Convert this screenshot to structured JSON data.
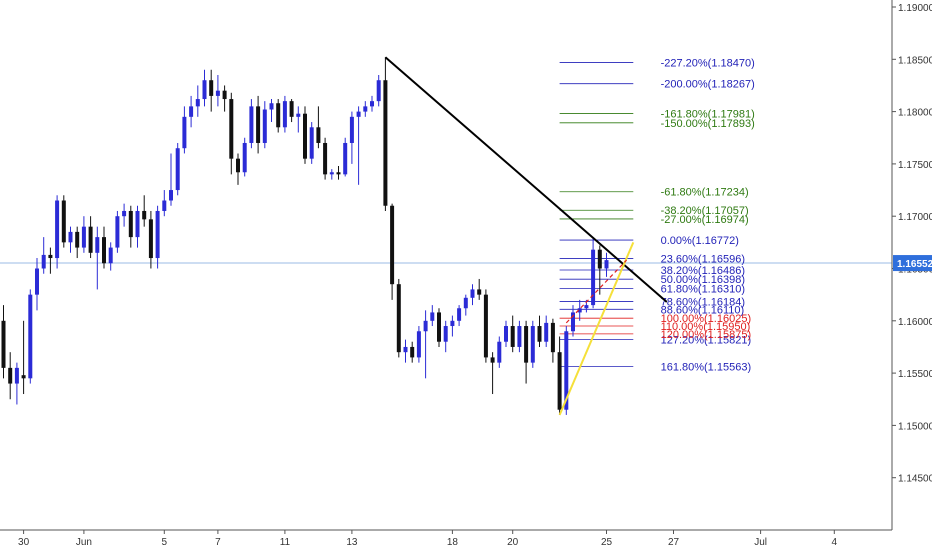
{
  "chart_data": {
    "type": "candlestick",
    "colors": {
      "bull": "#2b2bd6",
      "bear": "#111111",
      "last_price_bg": "#2f6fdc",
      "last_price_line": "#9bbbe6",
      "fib_blue": "#2323b8",
      "fib_green": "#2f7a12",
      "fib_red": "#e01e1e",
      "trendline": "#000000",
      "support_line": "#f5e03a",
      "projection": "#e02020",
      "axis_text": "#333333"
    },
    "ylim": [
      1.14,
      1.19
    ],
    "y_ticks": [
      {
        "value": 1.145,
        "label": "1.14500"
      },
      {
        "value": 1.15,
        "label": "1.15000"
      },
      {
        "value": 1.155,
        "label": "1.15500"
      },
      {
        "value": 1.16,
        "label": "1.16000"
      },
      {
        "value": 1.165,
        "label": "1.16500"
      },
      {
        "value": 1.17,
        "label": "1.17000"
      },
      {
        "value": 1.175,
        "label": "1.17500"
      },
      {
        "value": 1.18,
        "label": "1.18000"
      },
      {
        "value": 1.185,
        "label": "1.18500"
      },
      {
        "value": 1.19,
        "label": "1.19000"
      }
    ],
    "x_ticks": [
      {
        "label": "30",
        "x": 3
      },
      {
        "label": "Jun",
        "x": 12
      },
      {
        "label": "5",
        "x": 24
      },
      {
        "label": "7",
        "x": 32
      },
      {
        "label": "11",
        "x": 42
      },
      {
        "label": "13",
        "x": 52
      },
      {
        "label": "18",
        "x": 67
      },
      {
        "label": "20",
        "x": 76
      },
      {
        "label": "25",
        "x": 90
      },
      {
        "label": "27",
        "x": 100
      },
      {
        "label": "Jul",
        "x": 113
      },
      {
        "label": "4",
        "x": 124
      }
    ],
    "last_price": {
      "value": 1.16552,
      "label": "1.16552"
    },
    "candles": [
      {
        "x": 0,
        "o": 1.16,
        "h": 1.1615,
        "l": 1.1545,
        "c": 1.1555
      },
      {
        "x": 1,
        "o": 1.1555,
        "h": 1.157,
        "l": 1.1525,
        "c": 1.154
      },
      {
        "x": 2,
        "o": 1.154,
        "h": 1.156,
        "l": 1.152,
        "c": 1.1555
      },
      {
        "x": 3,
        "o": 1.1548,
        "h": 1.16,
        "l": 1.153,
        "c": 1.1545
      },
      {
        "x": 4,
        "o": 1.1545,
        "h": 1.163,
        "l": 1.154,
        "c": 1.1625
      },
      {
        "x": 5,
        "o": 1.1625,
        "h": 1.166,
        "l": 1.161,
        "c": 1.165
      },
      {
        "x": 6,
        "o": 1.165,
        "h": 1.168,
        "l": 1.1645,
        "c": 1.1663
      },
      {
        "x": 7,
        "o": 1.1663,
        "h": 1.167,
        "l": 1.1645,
        "c": 1.166
      },
      {
        "x": 8,
        "o": 1.166,
        "h": 1.172,
        "l": 1.165,
        "c": 1.1715
      },
      {
        "x": 9,
        "o": 1.1715,
        "h": 1.172,
        "l": 1.167,
        "c": 1.1675
      },
      {
        "x": 10,
        "o": 1.1675,
        "h": 1.169,
        "l": 1.1665,
        "c": 1.1685
      },
      {
        "x": 11,
        "o": 1.1685,
        "h": 1.169,
        "l": 1.166,
        "c": 1.167
      },
      {
        "x": 12,
        "o": 1.167,
        "h": 1.17,
        "l": 1.1665,
        "c": 1.169
      },
      {
        "x": 13,
        "o": 1.169,
        "h": 1.17,
        "l": 1.166,
        "c": 1.1665
      },
      {
        "x": 14,
        "o": 1.1665,
        "h": 1.169,
        "l": 1.163,
        "c": 1.168
      },
      {
        "x": 15,
        "o": 1.168,
        "h": 1.169,
        "l": 1.165,
        "c": 1.1655
      },
      {
        "x": 16,
        "o": 1.1655,
        "h": 1.1675,
        "l": 1.1648,
        "c": 1.167
      },
      {
        "x": 17,
        "o": 1.167,
        "h": 1.1705,
        "l": 1.1665,
        "c": 1.17
      },
      {
        "x": 18,
        "o": 1.17,
        "h": 1.1712,
        "l": 1.169,
        "c": 1.1705
      },
      {
        "x": 19,
        "o": 1.1705,
        "h": 1.171,
        "l": 1.167,
        "c": 1.168
      },
      {
        "x": 20,
        "o": 1.168,
        "h": 1.171,
        "l": 1.167,
        "c": 1.1705
      },
      {
        "x": 21,
        "o": 1.1705,
        "h": 1.172,
        "l": 1.169,
        "c": 1.1697
      },
      {
        "x": 22,
        "o": 1.1697,
        "h": 1.1705,
        "l": 1.165,
        "c": 1.166
      },
      {
        "x": 23,
        "o": 1.166,
        "h": 1.171,
        "l": 1.165,
        "c": 1.1705
      },
      {
        "x": 24,
        "o": 1.1705,
        "h": 1.1725,
        "l": 1.17,
        "c": 1.1715
      },
      {
        "x": 25,
        "o": 1.1715,
        "h": 1.176,
        "l": 1.171,
        "c": 1.1725
      },
      {
        "x": 26,
        "o": 1.1725,
        "h": 1.177,
        "l": 1.172,
        "c": 1.1765
      },
      {
        "x": 27,
        "o": 1.1765,
        "h": 1.1805,
        "l": 1.176,
        "c": 1.1795
      },
      {
        "x": 28,
        "o": 1.1795,
        "h": 1.1815,
        "l": 1.1785,
        "c": 1.1805
      },
      {
        "x": 29,
        "o": 1.1805,
        "h": 1.1825,
        "l": 1.1795,
        "c": 1.1812
      },
      {
        "x": 30,
        "o": 1.1812,
        "h": 1.184,
        "l": 1.1805,
        "c": 1.183
      },
      {
        "x": 31,
        "o": 1.183,
        "h": 1.184,
        "l": 1.18,
        "c": 1.1815
      },
      {
        "x": 32,
        "o": 1.1815,
        "h": 1.1835,
        "l": 1.1805,
        "c": 1.182
      },
      {
        "x": 33,
        "o": 1.182,
        "h": 1.1825,
        "l": 1.18,
        "c": 1.1812
      },
      {
        "x": 34,
        "o": 1.1812,
        "h": 1.1818,
        "l": 1.174,
        "c": 1.1755
      },
      {
        "x": 35,
        "o": 1.1755,
        "h": 1.176,
        "l": 1.173,
        "c": 1.1742
      },
      {
        "x": 36,
        "o": 1.1742,
        "h": 1.1775,
        "l": 1.1738,
        "c": 1.177
      },
      {
        "x": 37,
        "o": 1.177,
        "h": 1.1812,
        "l": 1.1765,
        "c": 1.1805
      },
      {
        "x": 38,
        "o": 1.1805,
        "h": 1.1815,
        "l": 1.176,
        "c": 1.177
      },
      {
        "x": 39,
        "o": 1.177,
        "h": 1.181,
        "l": 1.1765,
        "c": 1.1802
      },
      {
        "x": 40,
        "o": 1.1802,
        "h": 1.1812,
        "l": 1.179,
        "c": 1.1808
      },
      {
        "x": 41,
        "o": 1.1808,
        "h": 1.1812,
        "l": 1.178,
        "c": 1.1785
      },
      {
        "x": 42,
        "o": 1.1785,
        "h": 1.1815,
        "l": 1.178,
        "c": 1.181
      },
      {
        "x": 43,
        "o": 1.181,
        "h": 1.1812,
        "l": 1.179,
        "c": 1.1795
      },
      {
        "x": 44,
        "o": 1.1795,
        "h": 1.1805,
        "l": 1.178,
        "c": 1.1798
      },
      {
        "x": 45,
        "o": 1.1798,
        "h": 1.1805,
        "l": 1.175,
        "c": 1.1755
      },
      {
        "x": 46,
        "o": 1.1755,
        "h": 1.179,
        "l": 1.175,
        "c": 1.1785
      },
      {
        "x": 47,
        "o": 1.1785,
        "h": 1.1805,
        "l": 1.1765,
        "c": 1.177
      },
      {
        "x": 48,
        "o": 1.177,
        "h": 1.1775,
        "l": 1.1735,
        "c": 1.174
      },
      {
        "x": 49,
        "o": 1.174,
        "h": 1.1745,
        "l": 1.1735,
        "c": 1.1742
      },
      {
        "x": 50,
        "o": 1.1742,
        "h": 1.1748,
        "l": 1.1735,
        "c": 1.174
      },
      {
        "x": 51,
        "o": 1.174,
        "h": 1.1775,
        "l": 1.1738,
        "c": 1.177
      },
      {
        "x": 52,
        "o": 1.177,
        "h": 1.18,
        "l": 1.175,
        "c": 1.1795
      },
      {
        "x": 53,
        "o": 1.1795,
        "h": 1.1805,
        "l": 1.173,
        "c": 1.18
      },
      {
        "x": 54,
        "o": 1.18,
        "h": 1.181,
        "l": 1.1795,
        "c": 1.1805
      },
      {
        "x": 55,
        "o": 1.1805,
        "h": 1.1815,
        "l": 1.18,
        "c": 1.181
      },
      {
        "x": 56,
        "o": 1.181,
        "h": 1.1835,
        "l": 1.1805,
        "c": 1.183
      },
      {
        "x": 57,
        "o": 1.183,
        "h": 1.1852,
        "l": 1.1705,
        "c": 1.171
      },
      {
        "x": 58,
        "o": 1.171,
        "h": 1.1712,
        "l": 1.162,
        "c": 1.1635
      },
      {
        "x": 59,
        "o": 1.1635,
        "h": 1.164,
        "l": 1.1565,
        "c": 1.157
      },
      {
        "x": 60,
        "o": 1.157,
        "h": 1.1582,
        "l": 1.156,
        "c": 1.1575
      },
      {
        "x": 61,
        "o": 1.1575,
        "h": 1.158,
        "l": 1.156,
        "c": 1.1565
      },
      {
        "x": 62,
        "o": 1.1565,
        "h": 1.1595,
        "l": 1.156,
        "c": 1.159
      },
      {
        "x": 63,
        "o": 1.159,
        "h": 1.161,
        "l": 1.1545,
        "c": 1.16
      },
      {
        "x": 64,
        "o": 1.16,
        "h": 1.1615,
        "l": 1.1595,
        "c": 1.1608
      },
      {
        "x": 65,
        "o": 1.1608,
        "h": 1.1612,
        "l": 1.1575,
        "c": 1.158
      },
      {
        "x": 66,
        "o": 1.158,
        "h": 1.16,
        "l": 1.157,
        "c": 1.1595
      },
      {
        "x": 67,
        "o": 1.1595,
        "h": 1.1605,
        "l": 1.1585,
        "c": 1.16
      },
      {
        "x": 68,
        "o": 1.16,
        "h": 1.1615,
        "l": 1.1595,
        "c": 1.1612
      },
      {
        "x": 69,
        "o": 1.1612,
        "h": 1.1625,
        "l": 1.1605,
        "c": 1.1622
      },
      {
        "x": 70,
        "o": 1.1622,
        "h": 1.1635,
        "l": 1.1615,
        "c": 1.163
      },
      {
        "x": 71,
        "o": 1.163,
        "h": 1.164,
        "l": 1.162,
        "c": 1.1625
      },
      {
        "x": 72,
        "o": 1.1625,
        "h": 1.163,
        "l": 1.156,
        "c": 1.1565
      },
      {
        "x": 73,
        "o": 1.1565,
        "h": 1.157,
        "l": 1.153,
        "c": 1.156
      },
      {
        "x": 74,
        "o": 1.156,
        "h": 1.1585,
        "l": 1.1555,
        "c": 1.158
      },
      {
        "x": 75,
        "o": 1.158,
        "h": 1.16,
        "l": 1.1575,
        "c": 1.1595
      },
      {
        "x": 76,
        "o": 1.1595,
        "h": 1.1605,
        "l": 1.157,
        "c": 1.1575
      },
      {
        "x": 77,
        "o": 1.1575,
        "h": 1.16,
        "l": 1.157,
        "c": 1.1595
      },
      {
        "x": 78,
        "o": 1.1595,
        "h": 1.16,
        "l": 1.154,
        "c": 1.156
      },
      {
        "x": 79,
        "o": 1.156,
        "h": 1.16,
        "l": 1.1555,
        "c": 1.1595
      },
      {
        "x": 80,
        "o": 1.1595,
        "h": 1.1605,
        "l": 1.1575,
        "c": 1.158
      },
      {
        "x": 81,
        "o": 1.158,
        "h": 1.1605,
        "l": 1.1575,
        "c": 1.1598
      },
      {
        "x": 82,
        "o": 1.1598,
        "h": 1.1602,
        "l": 1.156,
        "c": 1.157
      },
      {
        "x": 83,
        "o": 1.157,
        "h": 1.1585,
        "l": 1.151,
        "c": 1.1515
      },
      {
        "x": 84,
        "o": 1.1515,
        "h": 1.1595,
        "l": 1.151,
        "c": 1.159
      },
      {
        "x": 85,
        "o": 1.159,
        "h": 1.1615,
        "l": 1.1585,
        "c": 1.1608
      },
      {
        "x": 86,
        "o": 1.1608,
        "h": 1.162,
        "l": 1.16,
        "c": 1.1612
      },
      {
        "x": 87,
        "o": 1.1612,
        "h": 1.162,
        "l": 1.1608,
        "c": 1.1615
      },
      {
        "x": 88,
        "o": 1.1615,
        "h": 1.168,
        "l": 1.1612,
        "c": 1.1668
      },
      {
        "x": 89,
        "o": 1.1668,
        "h": 1.1672,
        "l": 1.1625,
        "c": 1.165
      },
      {
        "x": 90,
        "o": 1.165,
        "h": 1.1665,
        "l": 1.1642,
        "c": 1.1658
      }
    ],
    "trendline": {
      "x1": 57,
      "y1": 1.1852,
      "x2": 99,
      "y2": 1.1618
    },
    "support_line": {
      "x1": 83,
      "y1": 1.151,
      "x2": 94,
      "y2": 1.1675
    },
    "projection": {
      "x1": 84,
      "y1": 1.1598,
      "x2": 93,
      "y2": 1.1658
    },
    "fib_retracement": {
      "x_start": 83,
      "x_end": 94,
      "levels": [
        {
          "label": "161.80%(1.15563)",
          "value": 1.15563,
          "color": "#2323b8"
        },
        {
          "label": "127.20%(1.15821)",
          "value": 1.15821,
          "color": "#2323b8"
        },
        {
          "label": "120.00%(1.15875)",
          "value": 1.15875,
          "color": "#e01e1e"
        },
        {
          "label": "110.00%(1.15950)",
          "value": 1.1595,
          "color": "#e01e1e"
        },
        {
          "label": "100.00%(1.16025)",
          "value": 1.16025,
          "color": "#e01e1e"
        },
        {
          "label": "88.60%(1.16110)",
          "value": 1.1611,
          "color": "#2323b8"
        },
        {
          "label": "78.60%(1.16184)",
          "value": 1.16184,
          "color": "#2323b8"
        },
        {
          "label": "61.80%(1.16310)",
          "value": 1.1631,
          "color": "#2323b8"
        },
        {
          "label": "50.00%(1.16398)",
          "value": 1.16398,
          "color": "#2323b8"
        },
        {
          "label": "38.20%(1.16486)",
          "value": 1.16486,
          "color": "#2323b8"
        },
        {
          "label": "23.60%(1.16596)",
          "value": 1.16596,
          "color": "#2323b8"
        },
        {
          "label": "0.00%(1.16772)",
          "value": 1.16772,
          "color": "#2323b8"
        },
        {
          "label": "-27.00%(1.16974)",
          "value": 1.16974,
          "color": "#2f7a12"
        },
        {
          "label": "-38.20%(1.17057)",
          "value": 1.17057,
          "color": "#2f7a12"
        },
        {
          "label": "-61.80%(1.17234)",
          "value": 1.17234,
          "color": "#2f7a12"
        },
        {
          "label": "-150.00%(1.17893)",
          "value": 1.17893,
          "color": "#2f7a12"
        },
        {
          "label": "-161.80%(1.17981)",
          "value": 1.17981,
          "color": "#2f7a12"
        },
        {
          "label": "-200.00%(1.18267)",
          "value": 1.18267,
          "color": "#2323b8"
        },
        {
          "label": "-227.20%(1.18470)",
          "value": 1.1847,
          "color": "#2323b8"
        }
      ]
    }
  }
}
